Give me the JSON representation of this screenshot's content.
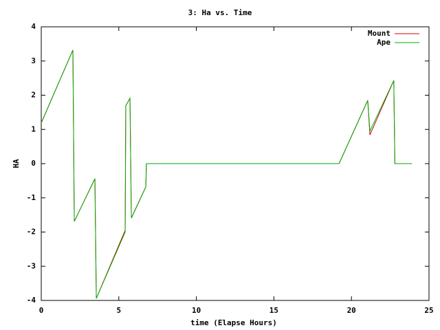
{
  "chart_data": {
    "type": "line",
    "title": "3: Ha vs. Time",
    "x_label": "time (Elapse Hours)",
    "y_label": "HA",
    "x": [
      0,
      2.04,
      2.13,
      3.46,
      3.55,
      5.41,
      5.45,
      5.72,
      5.81,
      6.74,
      6.78,
      19.2,
      21.05,
      21.19,
      22.73,
      22.8,
      23.9
    ],
    "series": [
      {
        "name": "Mount",
        "color": "#cc0000",
        "values": [
          1.19,
          3.32,
          -1.69,
          -0.44,
          -3.94,
          -1.95,
          1.69,
          1.91,
          -1.59,
          -0.68,
          0,
          0,
          1.85,
          0.84,
          2.43,
          0,
          0
        ]
      },
      {
        "name": "Ape",
        "color": "#00aa00",
        "values": [
          1.19,
          3.32,
          -1.69,
          -0.44,
          -3.94,
          -2.0,
          1.69,
          1.91,
          -1.59,
          -0.68,
          0,
          0,
          1.85,
          0.95,
          2.43,
          0,
          0
        ]
      }
    ],
    "xlim": [
      0,
      25
    ],
    "xticks": [
      0,
      5,
      10,
      15,
      20,
      25
    ],
    "ylim": [
      -4,
      4
    ],
    "yticks": [
      -4,
      -3,
      -2,
      -1,
      0,
      1,
      2,
      3,
      4
    ],
    "grid": false,
    "legend": "top-right"
  }
}
